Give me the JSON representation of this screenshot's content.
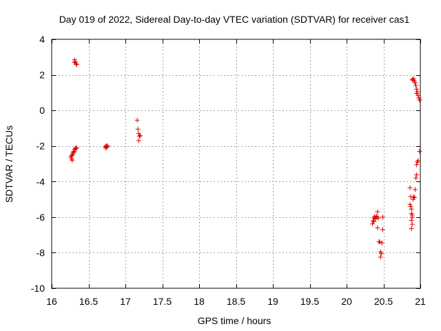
{
  "chart_data": {
    "type": "scatter",
    "title": "Day 019 of 2022, Sidereal Day-to-day VTEC variation (SDTVAR) for receiver cas1",
    "xlabel": "GPS time / hours",
    "ylabel": "SDTVAR / TECUs",
    "xlim": [
      16,
      21
    ],
    "ylim": [
      -10,
      4
    ],
    "x_ticks": [
      16,
      16.5,
      17,
      17.5,
      18,
      18.5,
      19,
      19.5,
      20,
      20.5,
      21
    ],
    "x_tick_labels": [
      "16",
      "16.5",
      "17",
      "17.5",
      "18",
      "18.5",
      "19",
      "19.5",
      "20",
      "20.5",
      "21"
    ],
    "y_ticks": [
      -10,
      -8,
      -6,
      -4,
      -2,
      0,
      2,
      4
    ],
    "y_tick_labels": [
      "-10",
      "-8",
      "-6",
      "-4",
      "-2",
      "0",
      "2",
      "4"
    ],
    "grid": true,
    "marker": "+",
    "marker_color": "#e00000",
    "series": [
      {
        "name": "cas1",
        "points": [
          [
            16.31,
            2.85
          ],
          [
            16.32,
            2.75
          ],
          [
            16.33,
            2.62
          ],
          [
            16.31,
            2.7
          ],
          [
            16.34,
            2.58
          ],
          [
            16.26,
            -2.62
          ],
          [
            16.27,
            -2.72
          ],
          [
            16.28,
            -2.8
          ],
          [
            16.27,
            -2.55
          ],
          [
            16.29,
            -2.4
          ],
          [
            16.3,
            -2.3
          ],
          [
            16.31,
            -2.2
          ],
          [
            16.32,
            -2.15
          ],
          [
            16.33,
            -2.1
          ],
          [
            16.34,
            -2.12
          ],
          [
            16.28,
            -2.5
          ],
          [
            16.3,
            -2.35
          ],
          [
            16.73,
            -2.03
          ],
          [
            16.74,
            -1.98
          ],
          [
            16.75,
            -2.05
          ],
          [
            16.76,
            -2.0
          ],
          [
            16.73,
            -2.1
          ],
          [
            16.74,
            -2.07
          ],
          [
            17.16,
            -0.55
          ],
          [
            17.17,
            -1.05
          ],
          [
            17.18,
            -1.3
          ],
          [
            17.19,
            -1.45
          ],
          [
            17.2,
            -1.42
          ],
          [
            17.18,
            -1.7
          ],
          [
            20.35,
            -6.38
          ],
          [
            20.36,
            -6.2
          ],
          [
            20.37,
            -6.05
          ],
          [
            20.38,
            -5.95
          ],
          [
            20.39,
            -6.1
          ],
          [
            20.4,
            -6.0
          ],
          [
            20.41,
            -5.95
          ],
          [
            20.42,
            -5.7
          ],
          [
            20.37,
            -6.25
          ],
          [
            20.43,
            -6.05
          ],
          [
            20.42,
            -6.6
          ],
          [
            20.44,
            -7.38
          ],
          [
            20.45,
            -7.4
          ],
          [
            20.46,
            -7.95
          ],
          [
            20.47,
            -8.05
          ],
          [
            20.46,
            -8.25
          ],
          [
            20.48,
            -7.45
          ],
          [
            20.49,
            -6.7
          ],
          [
            20.49,
            -6.0
          ],
          [
            20.86,
            -4.35
          ],
          [
            20.87,
            -4.85
          ],
          [
            20.86,
            -5.28
          ],
          [
            20.87,
            -5.4
          ],
          [
            20.88,
            -5.55
          ],
          [
            20.88,
            -5.8
          ],
          [
            20.89,
            -5.88
          ],
          [
            20.89,
            -6.0
          ],
          [
            20.88,
            -6.18
          ],
          [
            20.89,
            -6.4
          ],
          [
            20.88,
            -6.65
          ],
          [
            20.9,
            -5.0
          ],
          [
            20.91,
            -4.85
          ],
          [
            20.92,
            -4.9
          ],
          [
            20.93,
            -4.45
          ],
          [
            20.94,
            -3.8
          ],
          [
            20.95,
            -3.62
          ],
          [
            20.95,
            -3.05
          ],
          [
            20.96,
            -2.9
          ],
          [
            20.97,
            -2.82
          ],
          [
            20.99,
            -2.3
          ],
          [
            20.89,
            1.75
          ],
          [
            20.9,
            1.7
          ],
          [
            20.91,
            1.78
          ],
          [
            20.92,
            1.65
          ],
          [
            20.93,
            1.55
          ],
          [
            20.94,
            1.4
          ],
          [
            20.95,
            1.2
          ],
          [
            20.96,
            1.05
          ],
          [
            20.97,
            0.85
          ],
          [
            20.98,
            0.7
          ],
          [
            20.99,
            0.58
          ],
          [
            20.95,
            0.95
          ]
        ]
      }
    ]
  }
}
